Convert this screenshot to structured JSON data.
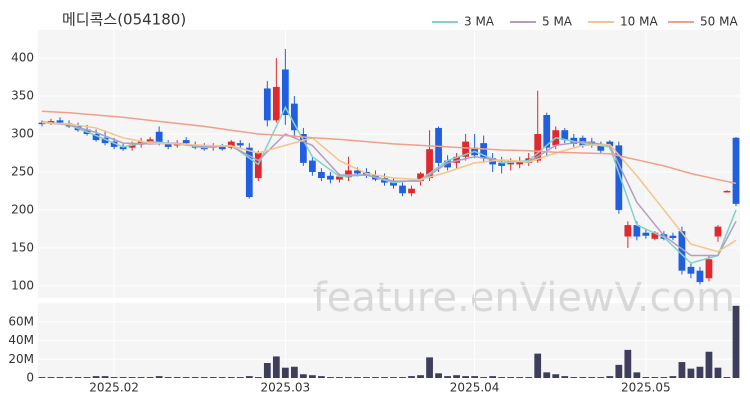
{
  "chart_data": {
    "type": "candlestick",
    "title": "메디콕스(054180)",
    "watermark": "feature.enViewV.com",
    "up_color": "#e0282e",
    "down_color": "#1f5fe0",
    "open": [
      315,
      316,
      318,
      314,
      310,
      306,
      300,
      295,
      290,
      283,
      282,
      286,
      290,
      303,
      288,
      285,
      292,
      285,
      283,
      282,
      283,
      282,
      288,
      282,
      242,
      360,
      318,
      385,
      340,
      300,
      265,
      250,
      245,
      240,
      243,
      252,
      250,
      246,
      242,
      238,
      232,
      222,
      238,
      242,
      308,
      265,
      262,
      270,
      282,
      288,
      268,
      262,
      262,
      260,
      262,
      265,
      325,
      285,
      305,
      295,
      295,
      290,
      285,
      290,
      285,
      165,
      180,
      170,
      162,
      168,
      166,
      172,
      125,
      120,
      110,
      165,
      225,
      295
    ],
    "high": [
      318,
      320,
      322,
      318,
      315,
      312,
      306,
      305,
      295,
      288,
      290,
      295,
      296,
      310,
      292,
      292,
      296,
      290,
      288,
      288,
      287,
      292,
      292,
      288,
      278,
      370,
      400,
      412,
      350,
      308,
      270,
      255,
      250,
      248,
      270,
      256,
      255,
      252,
      248,
      242,
      236,
      232,
      250,
      305,
      310,
      272,
      275,
      300,
      300,
      298,
      275,
      270,
      268,
      270,
      275,
      357,
      328,
      310,
      308,
      300,
      298,
      295,
      290,
      292,
      290,
      185,
      185,
      175,
      172,
      172,
      170,
      178,
      130,
      125,
      140,
      180,
      226,
      296
    ],
    "low": [
      310,
      312,
      314,
      308,
      303,
      298,
      290,
      285,
      280,
      278,
      278,
      282,
      286,
      285,
      280,
      282,
      285,
      280,
      278,
      278,
      278,
      280,
      282,
      215,
      238,
      310,
      315,
      312,
      295,
      258,
      245,
      238,
      235,
      236,
      238,
      244,
      242,
      238,
      232,
      228,
      218,
      218,
      232,
      238,
      250,
      252,
      255,
      265,
      268,
      262,
      250,
      248,
      252,
      255,
      258,
      262,
      272,
      280,
      288,
      283,
      282,
      282,
      274,
      280,
      195,
      150,
      160,
      162,
      160,
      160,
      160,
      115,
      110,
      102,
      106,
      158,
      224,
      205
    ],
    "close": [
      313,
      317,
      315,
      310,
      305,
      300,
      292,
      288,
      283,
      280,
      286,
      290,
      293,
      288,
      283,
      287,
      288,
      282,
      280,
      285,
      280,
      290,
      285,
      217,
      275,
      318,
      362,
      325,
      305,
      262,
      250,
      242,
      240,
      244,
      252,
      248,
      245,
      240,
      236,
      232,
      222,
      228,
      248,
      280,
      262,
      256,
      270,
      290,
      272,
      268,
      260,
      258,
      262,
      265,
      268,
      300,
      282,
      305,
      292,
      287,
      285,
      285,
      278,
      284,
      200,
      180,
      165,
      166,
      170,
      162,
      163,
      120,
      116,
      105,
      135,
      178,
      225,
      208
    ],
    "volume": {
      "color": "#3d3d5c",
      "values": [
        1,
        1,
        1,
        1,
        1,
        1,
        2,
        2,
        1,
        1,
        1,
        1,
        1,
        2,
        1,
        1,
        1,
        1,
        1,
        1,
        1,
        1,
        1,
        2,
        1,
        16,
        23,
        11,
        12,
        4,
        3,
        2,
        1,
        1,
        1,
        1,
        1,
        1,
        1,
        1,
        1,
        2,
        3,
        22,
        5,
        2,
        3,
        2,
        2,
        1,
        2,
        1,
        1,
        1,
        1,
        26,
        6,
        4,
        2,
        1,
        1,
        1,
        1,
        2,
        14,
        30,
        6,
        1,
        1,
        1,
        2,
        17,
        10,
        12,
        28,
        11,
        1,
        77
      ],
      "ylim": [
        0,
        80
      ],
      "yticks": [
        {
          "value": 0,
          "label": "0"
        },
        {
          "value": 20,
          "label": "20M"
        },
        {
          "value": 40,
          "label": "40M"
        },
        {
          "value": 60,
          "label": "60M"
        }
      ]
    },
    "ylim": [
      84,
      437
    ],
    "yticks": [
      100,
      150,
      200,
      250,
      300,
      350,
      400
    ],
    "xticks": [
      {
        "value": 8,
        "label": "2025.02"
      },
      {
        "value": 27,
        "label": "2025.03"
      },
      {
        "value": 48,
        "label": "2025.04"
      },
      {
        "value": 67,
        "label": "2025.05"
      }
    ],
    "grid": true,
    "legend": "top-right",
    "ma_x": [
      0,
      3,
      6,
      9,
      12,
      15,
      18,
      21,
      24,
      27,
      30,
      33,
      36,
      39,
      42,
      45,
      48,
      51,
      54,
      57,
      60,
      63,
      66,
      69,
      72,
      75,
      77
    ],
    "series": [
      {
        "name": "3 MA",
        "color": "#7fd3c8",
        "values": [
          315,
          312,
          298,
          283,
          290,
          287,
          282,
          285,
          260,
          335,
          270,
          244,
          246,
          236,
          240,
          265,
          277,
          262,
          265,
          295,
          288,
          283,
          180,
          164,
          130,
          140,
          200
        ]
      },
      {
        "name": "5 MA",
        "color": "#b59cc4",
        "values": [
          316,
          312,
          302,
          288,
          287,
          288,
          283,
          284,
          265,
          300,
          285,
          246,
          246,
          238,
          238,
          262,
          270,
          265,
          263,
          285,
          290,
          285,
          210,
          166,
          140,
          140,
          185
        ]
      },
      {
        "name": "10 MA",
        "color": "#f3c58a",
        "values": [
          315,
          313,
          308,
          295,
          288,
          287,
          285,
          284,
          275,
          285,
          295,
          265,
          248,
          242,
          240,
          250,
          262,
          266,
          263,
          275,
          285,
          286,
          245,
          200,
          155,
          145,
          160
        ]
      },
      {
        "name": "50 MA",
        "color": "#f0a08a",
        "values": [
          330,
          328,
          325,
          322,
          318,
          314,
          310,
          305,
          300,
          298,
          295,
          293,
          290,
          287,
          285,
          283,
          281,
          279,
          278,
          276,
          275,
          274,
          266,
          258,
          248,
          240,
          235
        ]
      }
    ]
  }
}
